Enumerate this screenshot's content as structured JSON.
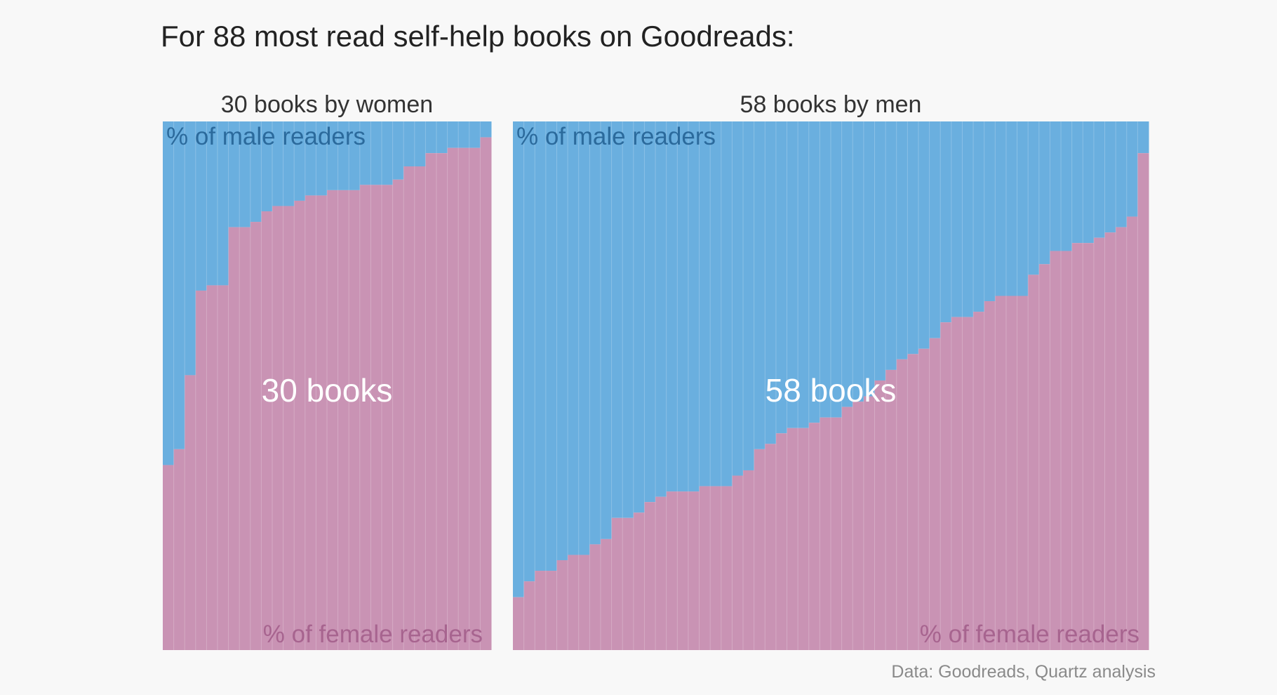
{
  "colors": {
    "male": "#6aafdf",
    "female": "#c993b4",
    "background": "#f8f8f8"
  },
  "chart_data": {
    "title": "For 88 most read self-help books on Goodreads:",
    "source": "Data: Goodreads, Quartz analysis",
    "panels": [
      {
        "type": "bar",
        "stacked": true,
        "subtitle": "30 books by women",
        "center_label": "30 books",
        "top_label": "% of male readers",
        "bottom_label": "% of female readers",
        "ylim": [
          0,
          100
        ],
        "female_pct": [
          35,
          38,
          52,
          68,
          69,
          69,
          80,
          80,
          81,
          83,
          84,
          84,
          85,
          86,
          86,
          87,
          87,
          87,
          88,
          88,
          88,
          89,
          91.5,
          91.5,
          94,
          94,
          95,
          95,
          95,
          97
        ]
      },
      {
        "type": "bar",
        "stacked": true,
        "subtitle": "58 books by men",
        "center_label": "58 books",
        "top_label": "% of male readers",
        "bottom_label": "% of female readers",
        "ylim": [
          0,
          100
        ],
        "female_pct": [
          10,
          13,
          15,
          15,
          17,
          18,
          18,
          20,
          21,
          25,
          25,
          26,
          28,
          29,
          30,
          30,
          30,
          31,
          31,
          31,
          33,
          34,
          38,
          39,
          41,
          42,
          42,
          43,
          44,
          44,
          46,
          47,
          48,
          51,
          53,
          55,
          56,
          57,
          59,
          62,
          63,
          63,
          64,
          66,
          67,
          67,
          67,
          71,
          73,
          75.5,
          75.5,
          77,
          77,
          78,
          79,
          80,
          82,
          94
        ]
      }
    ]
  }
}
